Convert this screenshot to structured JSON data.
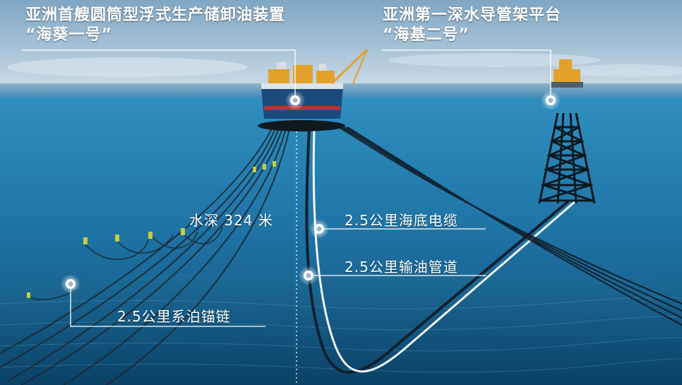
{
  "facilities": {
    "fpso": {
      "title": "亚洲首艘圆筒型浮式生产储卸油装置",
      "name": "“海葵一号”"
    },
    "platform": {
      "title": "亚洲第一深水导管架平台",
      "name": "“海基二号”"
    }
  },
  "callouts": {
    "water_depth": "水深 324 米",
    "subsea_cable": "2.5公里海底电缆",
    "oil_pipeline": "2.5公里输油管道",
    "mooring_chain": "2.5公里系泊锚链"
  }
}
